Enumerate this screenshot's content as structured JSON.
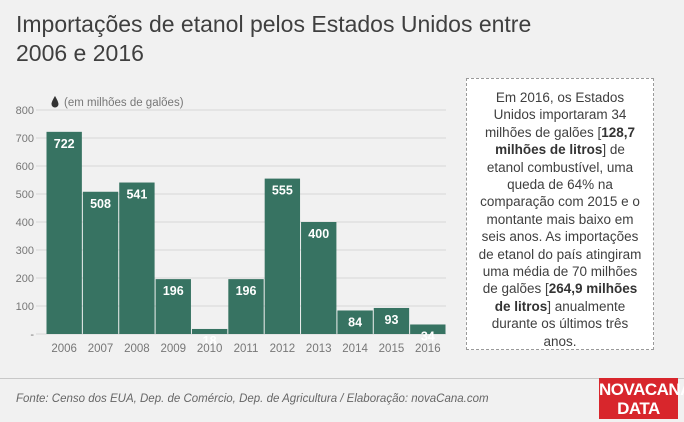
{
  "title": "Importações de etanol pelos Estados Unidos entre 2006 e 2016",
  "unit_label": "(em milhões de galões)",
  "note": {
    "t1": "Em 2016, os Estados Unidos importaram 34 milhões de galões [",
    "b1": "128,7 milhões de litros",
    "t2": "] de etanol combustível, uma queda de 64% na comparação com 2015 e o montante mais baixo em seis anos. As importações de etanol do país atingiram uma média de 70 milhões de galões [",
    "b2": "264,9 milhões de litros",
    "t3": "] anualmente durante os últimos três anos."
  },
  "source": "Fonte: Censo dos EUA, Dep. de Comércio, Dep. de Agricultura / Elaboração: novaCana.com",
  "logo": {
    "line1": "NOVACANA",
    "line2": "DATA"
  },
  "colors": {
    "bar": "#377362",
    "accent": "#d8262c",
    "background": "#f1f1f1"
  },
  "chart_data": {
    "type": "bar",
    "categories": [
      "2006",
      "2007",
      "2008",
      "2009",
      "2010",
      "2011",
      "2012",
      "2013",
      "2014",
      "2015",
      "2016"
    ],
    "values": [
      722,
      508,
      541,
      196,
      18,
      196,
      555,
      400,
      84,
      93,
      34
    ],
    "ylim": [
      0,
      800
    ],
    "yticks": [
      "800",
      "700",
      "600",
      "500",
      "400",
      "300",
      "200",
      "100",
      "-"
    ],
    "grid": true,
    "icon": "oil-drop-icon"
  }
}
